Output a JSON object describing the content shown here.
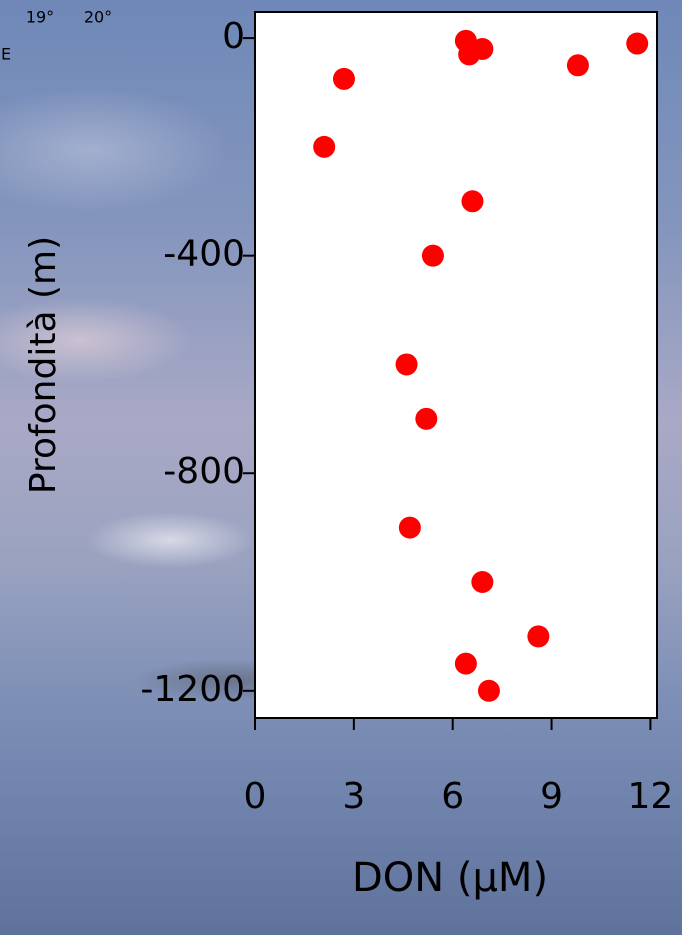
{
  "chart_data": {
    "type": "scatter",
    "x_label": "DON (µM)",
    "y_label": "Profondità (m)",
    "annotations": [
      "19°",
      "20°",
      "E"
    ],
    "x": [
      6.4,
      6.9,
      6.5,
      11.6,
      9.8,
      2.7,
      2.1,
      6.6,
      5.4,
      4.6,
      5.2,
      4.7,
      6.9,
      8.6,
      6.4,
      7.1
    ],
    "values": [
      -5,
      -20,
      -30,
      -10,
      -50,
      -75,
      -200,
      -300,
      -400,
      -600,
      -700,
      -900,
      -1000,
      -1100,
      -1150,
      -1200
    ],
    "color": "#ff0000",
    "xlim": [
      0,
      12.2
    ],
    "ylim": [
      -1250,
      48
    ],
    "xticks": [
      0,
      3,
      6,
      9,
      12
    ],
    "yticks": [
      0,
      -400,
      -800,
      -1200
    ]
  }
}
